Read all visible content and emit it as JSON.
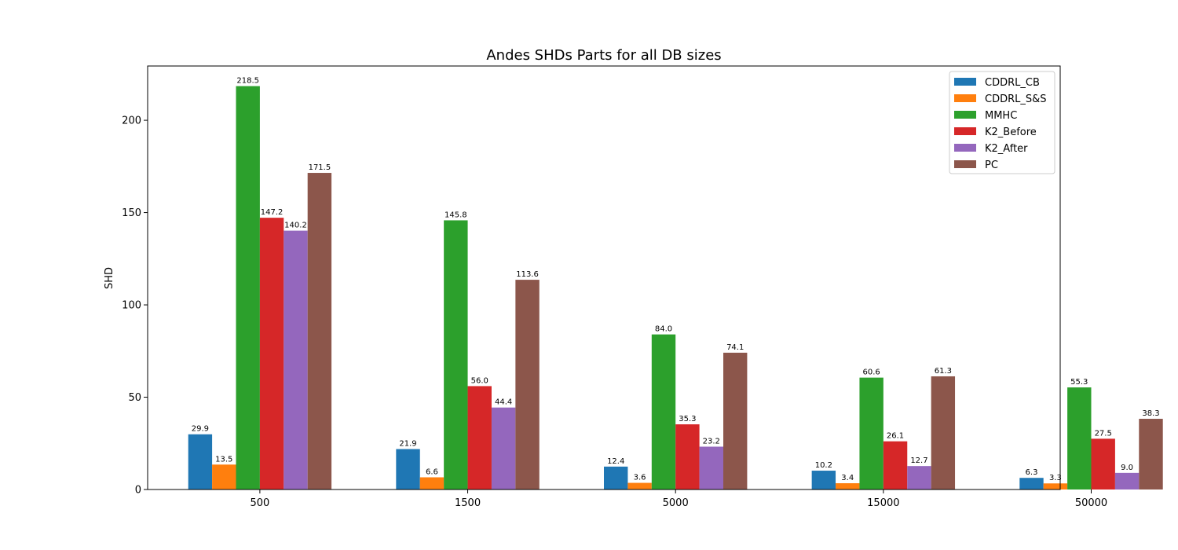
{
  "chart_data": {
    "type": "bar",
    "title": "Andes SHDs Parts for all DB sizes",
    "xlabel": "",
    "ylabel": "SHD",
    "categories": [
      "500",
      "1500",
      "5000",
      "15000",
      "50000"
    ],
    "ylim": [
      0,
      229.4
    ],
    "yticks": [
      0,
      50,
      100,
      150,
      200
    ],
    "grid": false,
    "legend_position": "top-right",
    "series": [
      {
        "name": "CDDRL_CB",
        "color": "#1f77b4",
        "values": [
          29.9,
          21.9,
          12.4,
          10.2,
          6.3
        ]
      },
      {
        "name": "CDDRL_S&S",
        "color": "#ff7f0e",
        "values": [
          13.5,
          6.6,
          3.6,
          3.4,
          3.3
        ]
      },
      {
        "name": "MMHC",
        "color": "#2ca02c",
        "values": [
          218.5,
          145.8,
          84.0,
          60.6,
          55.3
        ]
      },
      {
        "name": "K2_Before",
        "color": "#d62728",
        "values": [
          147.2,
          56.0,
          35.3,
          26.1,
          27.5
        ]
      },
      {
        "name": "K2_After",
        "color": "#9467bd",
        "values": [
          140.2,
          44.4,
          23.2,
          12.7,
          9.0
        ]
      },
      {
        "name": "PC",
        "color": "#8c564b",
        "values": [
          171.5,
          113.6,
          74.1,
          61.3,
          38.3
        ]
      }
    ]
  }
}
